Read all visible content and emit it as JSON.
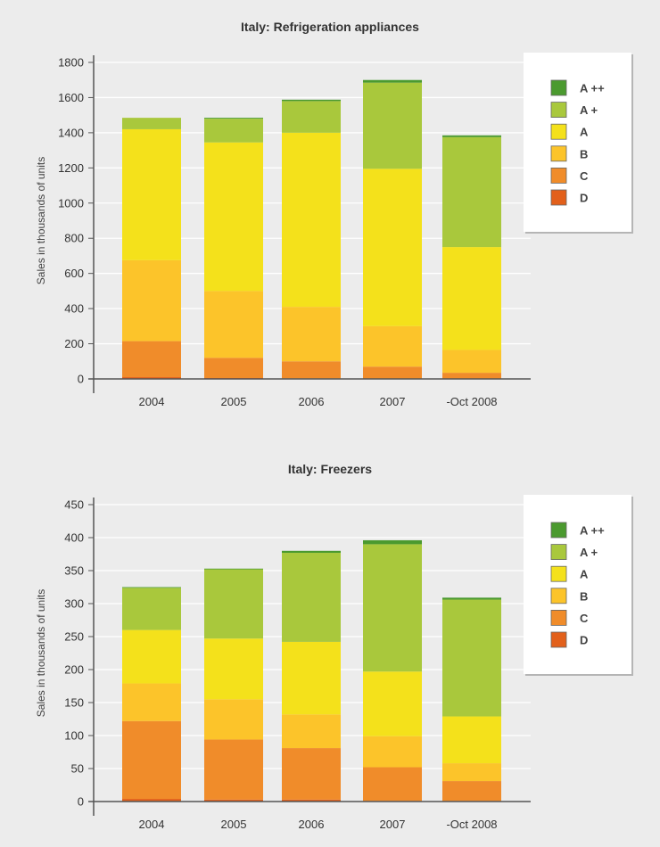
{
  "colors": {
    "A++": "#4b9a2f",
    "A+": "#a9c83c",
    "A": "#f4e11b",
    "B": "#fcc42a",
    "C": "#f08c2a",
    "D": "#e2601b"
  },
  "chart_data": [
    {
      "type": "bar",
      "stacked": true,
      "title": "Italy: Refrigeration appliances",
      "xlabel": "",
      "ylabel": "Sales in thousands of units",
      "ylim": [
        0,
        1800
      ],
      "yticks": [
        "0",
        "200",
        "400",
        "600",
        "800",
        "1000",
        "1200",
        "1400",
        "1600",
        "1800"
      ],
      "categories": [
        "2004",
        "2005",
        "2006",
        "2007",
        "-Oct 2008"
      ],
      "legend": [
        "A ++",
        "A +",
        "A",
        "B",
        "C",
        "D"
      ],
      "legend_position": "right",
      "series": [
        {
          "name": "D",
          "values": [
            10,
            5,
            3,
            2,
            2
          ]
        },
        {
          "name": "C",
          "values": [
            205,
            115,
            97,
            68,
            33
          ]
        },
        {
          "name": "B",
          "values": [
            460,
            380,
            310,
            230,
            130
          ]
        },
        {
          "name": "A",
          "values": [
            745,
            845,
            990,
            895,
            585
          ]
        },
        {
          "name": "A+",
          "values": [
            65,
            135,
            180,
            490,
            625
          ]
        },
        {
          "name": "A++",
          "values": [
            0,
            5,
            8,
            15,
            10
          ]
        }
      ]
    },
    {
      "type": "bar",
      "stacked": true,
      "title": "Italy: Freezers",
      "xlabel": "",
      "ylabel": "Sales in thousands of units",
      "ylim": [
        0,
        450
      ],
      "yticks": [
        "0",
        "50",
        "100",
        "150",
        "200",
        "250",
        "300",
        "350",
        "400",
        "450"
      ],
      "categories": [
        "2004",
        "2005",
        "2006",
        "2007",
        "-Oct 2008"
      ],
      "legend": [
        "A ++",
        "A +",
        "A",
        "B",
        "C",
        "D"
      ],
      "legend_position": "right",
      "series": [
        {
          "name": "D",
          "values": [
            4,
            3,
            3,
            1,
            1
          ]
        },
        {
          "name": "C",
          "values": [
            118,
            91,
            78,
            51,
            30
          ]
        },
        {
          "name": "B",
          "values": [
            57,
            61,
            51,
            47,
            27
          ]
        },
        {
          "name": "A",
          "values": [
            81,
            92,
            110,
            98,
            71
          ]
        },
        {
          "name": "A+",
          "values": [
            64,
            105,
            135,
            193,
            177
          ]
        },
        {
          "name": "A++",
          "values": [
            1,
            1,
            3,
            6,
            3
          ]
        }
      ]
    }
  ]
}
